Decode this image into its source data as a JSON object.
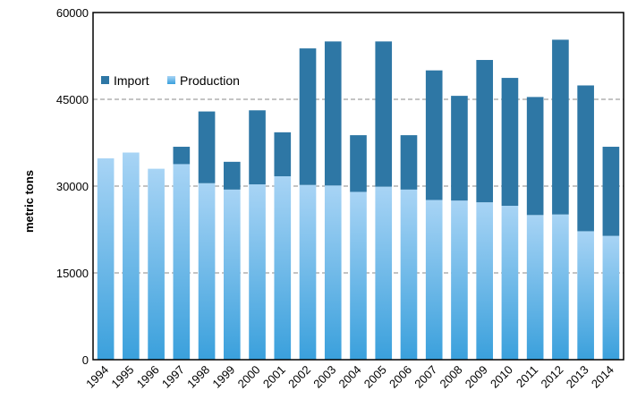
{
  "chart_data": {
    "type": "bar",
    "stacked": true,
    "ylabel": "metric tons",
    "xlabel": "",
    "ylim": [
      0,
      60000
    ],
    "yticks": [
      0,
      15000,
      30000,
      45000,
      60000
    ],
    "grid": "horizontal dashed",
    "legend_position": "top-left",
    "categories": [
      "1994",
      "1995",
      "1996",
      "1997",
      "1998",
      "1999",
      "2000",
      "2001",
      "2002",
      "2003",
      "2004",
      "2005",
      "2006",
      "2007",
      "2008",
      "2009",
      "2010",
      "2011",
      "2012",
      "2013",
      "2014"
    ],
    "series": [
      {
        "name": "Production",
        "color_top": "#a8d4f5",
        "color_bottom": "#3aa0dc",
        "values": [
          34800,
          35800,
          33000,
          33800,
          30500,
          29400,
          30300,
          31700,
          30200,
          30100,
          29000,
          29900,
          29400,
          27600,
          27500,
          27200,
          26600,
          25000,
          25100,
          22200,
          21400
        ]
      },
      {
        "name": "Import",
        "color": "#2e77a5",
        "values": [
          0,
          0,
          0,
          3000,
          12400,
          4800,
          12800,
          7600,
          23600,
          24900,
          9800,
          25100,
          9400,
          22400,
          18100,
          24600,
          22100,
          20400,
          30200,
          25200,
          15400
        ]
      }
    ]
  }
}
